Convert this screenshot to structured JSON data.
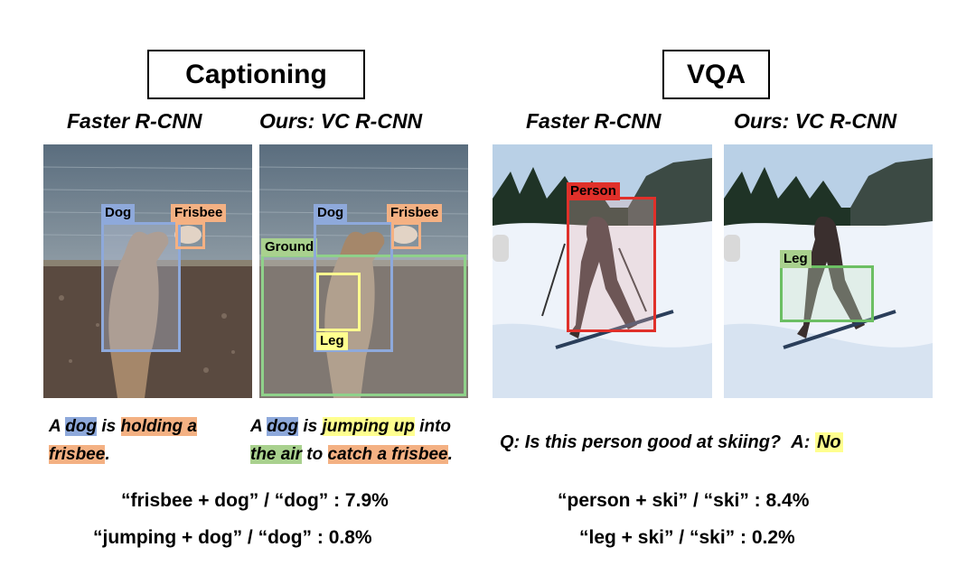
{
  "captioning": {
    "title": "Captioning",
    "left_label": "Faster R-CNN",
    "right_label": "Ours: VC R-CNN",
    "left_boxes": {
      "dog": "Dog",
      "frisbee": "Frisbee"
    },
    "right_boxes": {
      "dog": "Dog",
      "frisbee": "Frisbee",
      "ground": "Ground",
      "leg": "Leg"
    },
    "left_caption": {
      "p1": "A ",
      "dog": "dog",
      "p2": " is ",
      "holding": "holding a",
      "frisbee": "frisbee",
      "p3": "."
    },
    "right_caption": {
      "p1": "A ",
      "dog": "dog",
      "p2": " is ",
      "jumping": "jumping up",
      "p3": " into",
      "air": "the air",
      "p4": " to ",
      "catch": "catch a frisbee",
      "p5": "."
    },
    "stats": [
      "“frisbee + dog” / “dog” : 7.9%",
      "“jumping + dog” / “dog” : 0.8%"
    ]
  },
  "vqa": {
    "title": "VQA",
    "left_label": "Faster R-CNN",
    "right_label": "Ours: VC R-CNN",
    "left_boxes": {
      "person": "Person"
    },
    "right_boxes": {
      "leg": "Leg"
    },
    "question": "Q: Is this person good at skiing?",
    "answer_prefix": "A:",
    "answer": "No",
    "stats": [
      "“person + ski” / “ski” : 8.4%",
      "“leg + ski” / “ski” : 0.2%"
    ]
  },
  "colors": {
    "box_blue": "#8ea9db",
    "box_orange": "#f4b183",
    "box_green": "#8fd18a",
    "box_yellow": "#ffff8f",
    "box_red": "#e0302a"
  }
}
